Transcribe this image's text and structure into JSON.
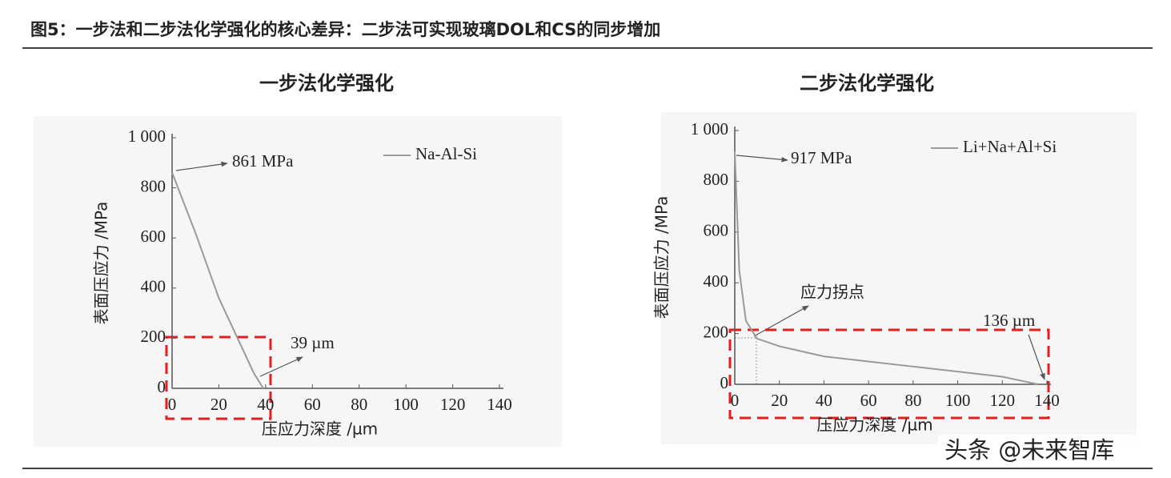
{
  "figure_title": "图5：一步法和二步法化学强化的核心差异：二步法可实现玻璃DOL和CS的同步增加",
  "watermark": "头条 @未来智库",
  "chart_data": [
    {
      "type": "line",
      "title": "一步法化学强化",
      "xlabel": "压应力深度 /µm",
      "ylabel": "表面压应力 /MPa",
      "x": [
        0,
        10,
        20,
        30,
        35,
        39
      ],
      "series": [
        {
          "name": "Na-Al-Si",
          "color": "#9a9a9a",
          "values": [
            861,
            620,
            360,
            160,
            60,
            0
          ]
        }
      ],
      "xlim": [
        0,
        140
      ],
      "ylim": [
        0,
        1000
      ],
      "xticks": [
        0,
        20,
        40,
        60,
        80,
        100,
        120,
        140
      ],
      "yticks": [
        0,
        200,
        400,
        600,
        800,
        {
          "value": 1000,
          "label": "1 000"
        }
      ],
      "legend": "upper right",
      "annotations": [
        "861 MPa",
        "39 µm"
      ]
    },
    {
      "type": "line",
      "title": "二步法化学强化",
      "xlabel": "压应力深度 /µm",
      "ylabel": "表面压应力 /MPa",
      "x": [
        0,
        2,
        5,
        10,
        20,
        40,
        60,
        80,
        100,
        120,
        136
      ],
      "series": [
        {
          "name": "Li+Na+Al+Si",
          "color": "#9a9a9a",
          "values": [
            917,
            450,
            250,
            180,
            150,
            110,
            90,
            70,
            50,
            30,
            0
          ]
        }
      ],
      "xlim": [
        0,
        140
      ],
      "ylim": [
        0,
        1000
      ],
      "xticks": [
        0,
        20,
        40,
        60,
        80,
        100,
        120,
        140
      ],
      "yticks": [
        0,
        200,
        400,
        600,
        800,
        {
          "value": 1000,
          "label": "1 000"
        }
      ],
      "legend": "upper right",
      "annotations": [
        "917 MPa",
        "应力拐点",
        "136 µm"
      ]
    }
  ]
}
